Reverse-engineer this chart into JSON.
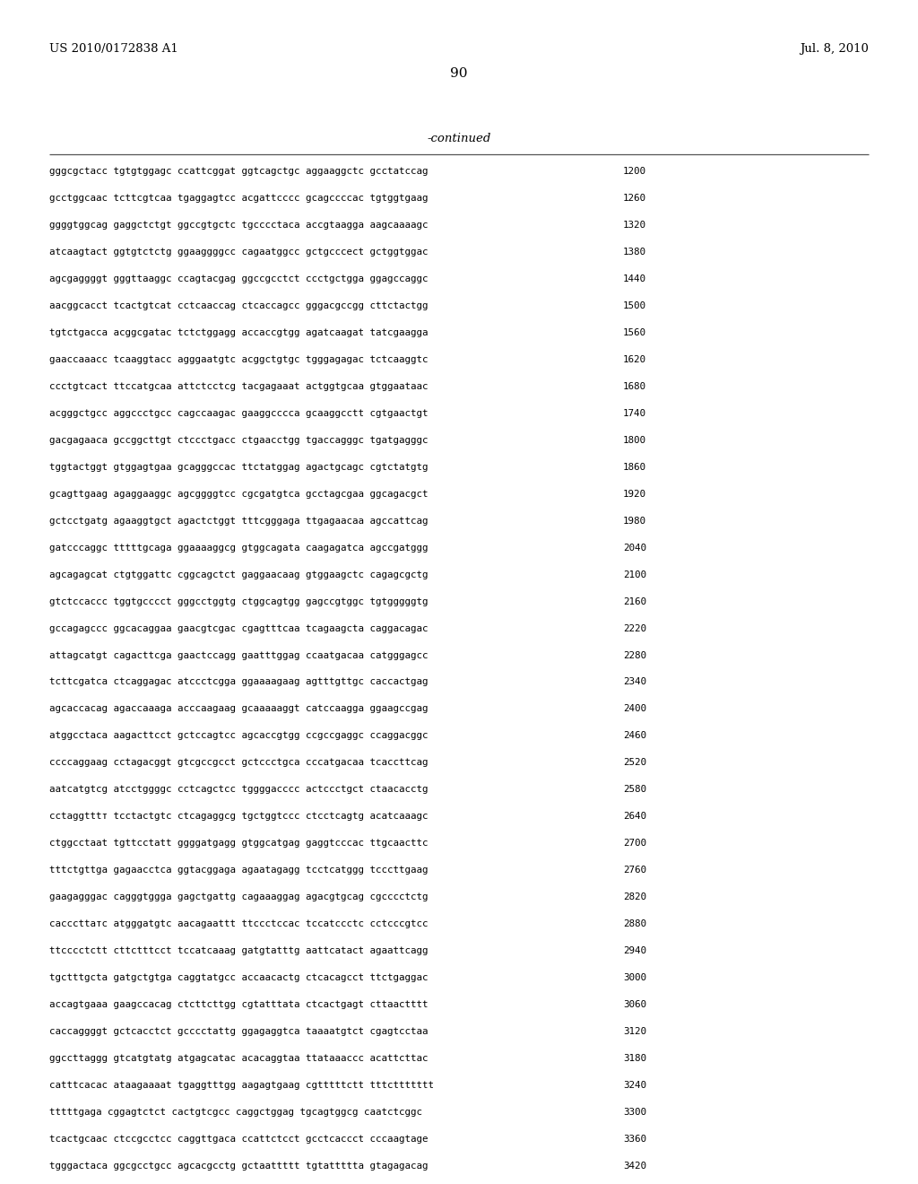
{
  "header_left": "US 2010/0172838 A1",
  "header_right": "Jul. 8, 2010",
  "page_number": "90",
  "continued_label": "-continued",
  "background_color": "#ffffff",
  "text_color": "#000000",
  "font_size": 7.8,
  "header_font_size": 9.5,
  "page_num_font_size": 11,
  "continued_font_size": 9.5,
  "sequences": [
    [
      "gggcgctacc tgtgtggagc ccattcggat ggtcagctgc aggaaggctc gcctatccag",
      "1200"
    ],
    [
      "gcctggcaac tcttcgtcaa tgaggagtcc acgattcccc gcagccccac tgtggtgaag",
      "1260"
    ],
    [
      "ggggtggcag gaggctctgt ggccgtgctc tgcccctaca accgtaagga aagcaaaagc",
      "1320"
    ],
    [
      "atcaagtact ggtgtctctg ggaaggggcc cagaatggcc gctgcccect gctggtggac",
      "1380"
    ],
    [
      "agcgaggggt gggttaaggc ccagtacgag ggccgcctct ccctgctgga ggagccaggc",
      "1440"
    ],
    [
      "aacggcacct tcactgtcat cctcaaccag ctcaccagcc gggacgccgg cttctactgg",
      "1500"
    ],
    [
      "tgtctgacca acggcgatac tctctggagg accaccgtgg agatcaagat tatcgaagga",
      "1560"
    ],
    [
      "gaaccaaacc tcaaggtacc agggaatgtc acggctgtgc tgggagagac tctcaaggtc",
      "1620"
    ],
    [
      "ccctgtcact ttccatgcaa attctcctcg tacgagaaat actggtgcaa gtggaataac",
      "1680"
    ],
    [
      "acgggctgcc aggccctgcc cagccaagac gaaggcccca gcaaggcctt cgtgaactgt",
      "1740"
    ],
    [
      "gacgagaaca gccggcttgt ctccctgacc ctgaacctgg tgaccagggc tgatgagggc",
      "1800"
    ],
    [
      "tggtactggt gtggagtgaa gcagggccac ttctatggag agactgcagc cgtctatgtg",
      "1860"
    ],
    [
      "gcagttgaag agaggaaggc agcggggtcc cgcgatgtca gcctagcgaa ggcagacgct",
      "1920"
    ],
    [
      "gctcctgatg agaaggtgct agactctggt tttcgggaga ttgagaacaa agccattcag",
      "1980"
    ],
    [
      "gatcccaggc tttttgcaga ggaaaaggcg gtggcagata caagagatca agccgatggg",
      "2040"
    ],
    [
      "agcagagcat ctgtggattc cggcagctct gaggaacaag gtggaagctc cagagcgctg",
      "2100"
    ],
    [
      "gtctccaccc tggtgcccct gggcctggtg ctggcagtgg gagccgtggc tgtgggggtg",
      "2160"
    ],
    [
      "gccagagccc ggcacaggaa gaacgtcgac cgagtttcaa tcagaagcta caggacagac",
      "2220"
    ],
    [
      "attagcatgt cagacttcga gaactccagg gaatttggag ccaatgacaa catgggagcc",
      "2280"
    ],
    [
      "tcttcgatca ctcaggagac atccctcgga ggaaaagaag agtttgttgc caccactgag",
      "2340"
    ],
    [
      "agcaccacag agaccaaaga acccaagaag gcaaaaaggt catccaagga ggaagccgag",
      "2400"
    ],
    [
      "atggcctaca aagacttcct gctccagtcc agcaccgtgg ccgccgaggc ccaggacggc",
      "2460"
    ],
    [
      "ccccaggaag cctagacggt gtcgccgcct gctccctgca cccatgacaa tcaccttcag",
      "2520"
    ],
    [
      "aatcatgtcg atcctggggc cctcagctcc tggggacccc actccctgct ctaacacctg",
      "2580"
    ],
    [
      "cctaggtttт tcctactgtc ctcagaggcg tgctggtccc ctcctcagtg acatcaaagc",
      "2640"
    ],
    [
      "ctggcctaat tgttcctatt ggggatgagg gtggcatgag gaggtcccac ttgcaacttc",
      "2700"
    ],
    [
      "tttctgttga gagaacctca ggtacggaga agaatagagg tcctcatggg tcccttgaag",
      "2760"
    ],
    [
      "gaagagggac cagggtggga gagctgattg cagaaaggag agacgtgcag cgcccctctg",
      "2820"
    ],
    [
      "cacccttатc atgggatgtc aacagaattt ttccctccac tccatccctc cctcccgtcc",
      "2880"
    ],
    [
      "ttcccctctt cttctttcct tccatcaaag gatgtatttg aattcatact agaattcagg",
      "2940"
    ],
    [
      "tgctttgcta gatgctgtga caggtatgcc accaacactg ctcacagcct ttctgaggac",
      "3000"
    ],
    [
      "accagtgaaa gaagccacag ctcttcttgg cgtatttata ctcactgagt cttaactttt",
      "3060"
    ],
    [
      "caccaggggt gctcacctct gcccctattg ggagaggtca taaaatgtct cgagtcctaa",
      "3120"
    ],
    [
      "ggccttaggg gtcatgtatg atgagcatac acacaggtaa ttataaaccc acattcttac",
      "3180"
    ],
    [
      "catttcacac ataagaaaat tgaggtttgg aagagtgaag cgtttttctt tttcttttttt",
      "3240"
    ],
    [
      "tttttgaga cggagtctct cactgtcgcc caggctggag tgcagtggcg caatctcggc",
      "3300"
    ],
    [
      "tcactgcaac ctccgcctcc caggttgaca ccattctcct gcctcaccct cccaagtage",
      "3360"
    ],
    [
      "tgggactaca ggcgcctgcc agcacgcctg gctaattttt tgtattttta gtagagacag",
      "3420"
    ]
  ]
}
